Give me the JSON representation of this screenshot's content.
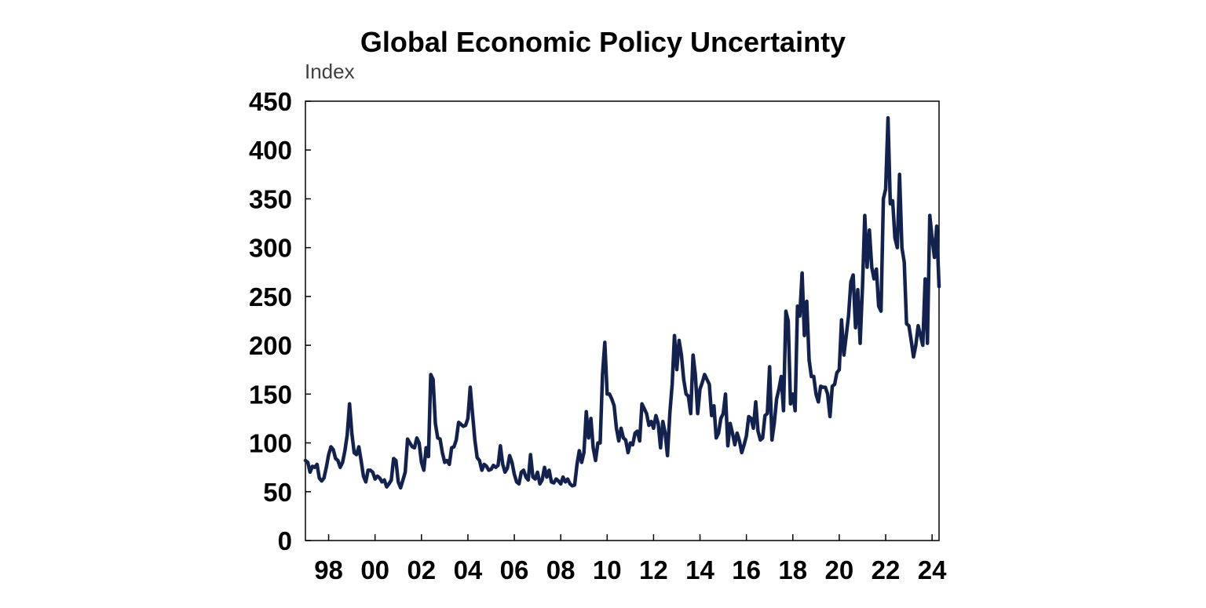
{
  "chart_data": {
    "type": "line",
    "title": "Global Economic Policy Uncertainty",
    "ylabel": "Index",
    "xlabel": "",
    "ylim": [
      0,
      450
    ],
    "xlim": [
      1997.0,
      2024.3
    ],
    "yticks": [
      0,
      50,
      100,
      150,
      200,
      250,
      300,
      350,
      400,
      450
    ],
    "xticks": [
      {
        "value": 1998,
        "label": "98"
      },
      {
        "value": 2000,
        "label": "00"
      },
      {
        "value": 2002,
        "label": "02"
      },
      {
        "value": 2004,
        "label": "04"
      },
      {
        "value": 2006,
        "label": "06"
      },
      {
        "value": 2008,
        "label": "08"
      },
      {
        "value": 2010,
        "label": "10"
      },
      {
        "value": 2012,
        "label": "12"
      },
      {
        "value": 2014,
        "label": "14"
      },
      {
        "value": 2016,
        "label": "16"
      },
      {
        "value": 2018,
        "label": "18"
      },
      {
        "value": 2020,
        "label": "20"
      },
      {
        "value": 2022,
        "label": "22"
      },
      {
        "value": 2024,
        "label": "24"
      }
    ],
    "grid": false,
    "legend": "none",
    "series": [
      {
        "name": "Global Economic Policy Uncertainty Index",
        "color": "#13214f",
        "points": [
          [
            1997.0,
            82
          ],
          [
            1997.1,
            80
          ],
          [
            1997.2,
            70
          ],
          [
            1997.3,
            76
          ],
          [
            1997.4,
            75
          ],
          [
            1997.5,
            78
          ],
          [
            1997.6,
            64
          ],
          [
            1997.7,
            61
          ],
          [
            1997.8,
            64
          ],
          [
            1997.9,
            75
          ],
          [
            1998.0,
            88
          ],
          [
            1998.1,
            96
          ],
          [
            1998.2,
            93
          ],
          [
            1998.3,
            84
          ],
          [
            1998.4,
            82
          ],
          [
            1998.5,
            75
          ],
          [
            1998.6,
            80
          ],
          [
            1998.7,
            92
          ],
          [
            1998.8,
            108
          ],
          [
            1998.9,
            140
          ],
          [
            1999.0,
            110
          ],
          [
            1999.1,
            90
          ],
          [
            1999.2,
            88
          ],
          [
            1999.3,
            96
          ],
          [
            1999.4,
            82
          ],
          [
            1999.5,
            66
          ],
          [
            1999.6,
            60
          ],
          [
            1999.7,
            72
          ],
          [
            1999.8,
            72
          ],
          [
            1999.9,
            70
          ],
          [
            2000.0,
            63
          ],
          [
            2000.1,
            66
          ],
          [
            2000.2,
            64
          ],
          [
            2000.3,
            60
          ],
          [
            2000.4,
            62
          ],
          [
            2000.5,
            55
          ],
          [
            2000.6,
            58
          ],
          [
            2000.7,
            62
          ],
          [
            2000.8,
            84
          ],
          [
            2000.9,
            82
          ],
          [
            2001.0,
            60
          ],
          [
            2001.1,
            54
          ],
          [
            2001.2,
            62
          ],
          [
            2001.3,
            70
          ],
          [
            2001.4,
            104
          ],
          [
            2001.5,
            100
          ],
          [
            2001.6,
            96
          ],
          [
            2001.7,
            95
          ],
          [
            2001.8,
            105
          ],
          [
            2001.9,
            100
          ],
          [
            2002.0,
            80
          ],
          [
            2002.1,
            72
          ],
          [
            2002.2,
            95
          ],
          [
            2002.3,
            86
          ],
          [
            2002.4,
            170
          ],
          [
            2002.5,
            165
          ],
          [
            2002.6,
            120
          ],
          [
            2002.7,
            105
          ],
          [
            2002.8,
            104
          ],
          [
            2002.9,
            90
          ],
          [
            2003.0,
            80
          ],
          [
            2003.1,
            82
          ],
          [
            2003.2,
            78
          ],
          [
            2003.3,
            95
          ],
          [
            2003.4,
            96
          ],
          [
            2003.5,
            103
          ],
          [
            2003.6,
            121
          ],
          [
            2003.7,
            119
          ],
          [
            2003.8,
            117
          ],
          [
            2003.9,
            118
          ],
          [
            2004.0,
            125
          ],
          [
            2004.1,
            157
          ],
          [
            2004.2,
            130
          ],
          [
            2004.3,
            103
          ],
          [
            2004.4,
            85
          ],
          [
            2004.5,
            82
          ],
          [
            2004.6,
            72
          ],
          [
            2004.7,
            78
          ],
          [
            2004.8,
            76
          ],
          [
            2004.9,
            72
          ],
          [
            2005.0,
            73
          ],
          [
            2005.1,
            77
          ],
          [
            2005.2,
            75
          ],
          [
            2005.3,
            77
          ],
          [
            2005.4,
            97
          ],
          [
            2005.5,
            78
          ],
          [
            2005.6,
            70
          ],
          [
            2005.7,
            74
          ],
          [
            2005.8,
            87
          ],
          [
            2005.9,
            80
          ],
          [
            2006.0,
            68
          ],
          [
            2006.1,
            60
          ],
          [
            2006.2,
            58
          ],
          [
            2006.3,
            70
          ],
          [
            2006.4,
            72
          ],
          [
            2006.5,
            65
          ],
          [
            2006.6,
            62
          ],
          [
            2006.7,
            88
          ],
          [
            2006.8,
            65
          ],
          [
            2006.9,
            63
          ],
          [
            2007.0,
            70
          ],
          [
            2007.1,
            58
          ],
          [
            2007.2,
            62
          ],
          [
            2007.3,
            75
          ],
          [
            2007.4,
            65
          ],
          [
            2007.5,
            72
          ],
          [
            2007.6,
            60
          ],
          [
            2007.7,
            59
          ],
          [
            2007.8,
            63
          ],
          [
            2007.9,
            61
          ],
          [
            2008.0,
            58
          ],
          [
            2008.1,
            65
          ],
          [
            2008.2,
            60
          ],
          [
            2008.3,
            63
          ],
          [
            2008.4,
            58
          ],
          [
            2008.5,
            56
          ],
          [
            2008.6,
            57
          ],
          [
            2008.7,
            78
          ],
          [
            2008.8,
            92
          ],
          [
            2008.9,
            80
          ],
          [
            2009.0,
            90
          ],
          [
            2009.1,
            132
          ],
          [
            2009.2,
            105
          ],
          [
            2009.3,
            125
          ],
          [
            2009.4,
            95
          ],
          [
            2009.5,
            82
          ],
          [
            2009.6,
            100
          ],
          [
            2009.7,
            100
          ],
          [
            2009.8,
            170
          ],
          [
            2009.9,
            203
          ],
          [
            2010.0,
            150
          ],
          [
            2010.1,
            150
          ],
          [
            2010.2,
            145
          ],
          [
            2010.3,
            138
          ],
          [
            2010.4,
            115
          ],
          [
            2010.5,
            102
          ],
          [
            2010.6,
            115
          ],
          [
            2010.7,
            105
          ],
          [
            2010.8,
            103
          ],
          [
            2010.9,
            90
          ],
          [
            2011.0,
            100
          ],
          [
            2011.1,
            98
          ],
          [
            2011.2,
            110
          ],
          [
            2011.3,
            112
          ],
          [
            2011.4,
            102
          ],
          [
            2011.5,
            140
          ],
          [
            2011.6,
            135
          ],
          [
            2011.7,
            130
          ],
          [
            2011.8,
            118
          ],
          [
            2011.9,
            122
          ],
          [
            2012.0,
            115
          ],
          [
            2012.1,
            128
          ],
          [
            2012.2,
            120
          ],
          [
            2012.3,
            95
          ],
          [
            2012.4,
            122
          ],
          [
            2012.5,
            110
          ],
          [
            2012.6,
            87
          ],
          [
            2012.7,
            130
          ],
          [
            2012.8,
            160
          ],
          [
            2012.9,
            210
          ],
          [
            2013.0,
            175
          ],
          [
            2013.1,
            205
          ],
          [
            2013.2,
            190
          ],
          [
            2013.3,
            165
          ],
          [
            2013.4,
            150
          ],
          [
            2013.5,
            148
          ],
          [
            2013.6,
            130
          ],
          [
            2013.7,
            190
          ],
          [
            2013.8,
            170
          ],
          [
            2013.9,
            130
          ],
          [
            2014.0,
            155
          ],
          [
            2014.1,
            162
          ],
          [
            2014.2,
            170
          ],
          [
            2014.3,
            165
          ],
          [
            2014.4,
            160
          ],
          [
            2014.5,
            128
          ],
          [
            2014.6,
            138
          ],
          [
            2014.7,
            105
          ],
          [
            2014.8,
            110
          ],
          [
            2014.9,
            125
          ],
          [
            2015.0,
            130
          ],
          [
            2015.1,
            150
          ],
          [
            2015.2,
            97
          ],
          [
            2015.3,
            120
          ],
          [
            2015.4,
            110
          ],
          [
            2015.5,
            98
          ],
          [
            2015.6,
            110
          ],
          [
            2015.7,
            102
          ],
          [
            2015.8,
            90
          ],
          [
            2015.9,
            98
          ],
          [
            2016.0,
            107
          ],
          [
            2016.1,
            127
          ],
          [
            2016.2,
            125
          ],
          [
            2016.3,
            115
          ],
          [
            2016.4,
            142
          ],
          [
            2016.5,
            112
          ],
          [
            2016.6,
            103
          ],
          [
            2016.7,
            105
          ],
          [
            2016.8,
            128
          ],
          [
            2016.9,
            130
          ],
          [
            2017.0,
            178
          ],
          [
            2017.1,
            103
          ],
          [
            2017.2,
            120
          ],
          [
            2017.3,
            145
          ],
          [
            2017.4,
            155
          ],
          [
            2017.5,
            168
          ],
          [
            2017.6,
            133
          ],
          [
            2017.7,
            235
          ],
          [
            2017.8,
            225
          ],
          [
            2017.9,
            140
          ],
          [
            2018.0,
            150
          ],
          [
            2018.1,
            133
          ],
          [
            2018.2,
            240
          ],
          [
            2018.3,
            230
          ],
          [
            2018.4,
            274
          ],
          [
            2018.5,
            210
          ],
          [
            2018.6,
            245
          ],
          [
            2018.7,
            185
          ],
          [
            2018.8,
            168
          ],
          [
            2018.9,
            168
          ],
          [
            2019.0,
            150
          ],
          [
            2019.1,
            142
          ],
          [
            2019.2,
            158
          ],
          [
            2019.3,
            157
          ],
          [
            2019.4,
            157
          ],
          [
            2019.5,
            150
          ],
          [
            2019.6,
            127
          ],
          [
            2019.7,
            158
          ],
          [
            2019.8,
            160
          ],
          [
            2019.9,
            172
          ],
          [
            2020.0,
            175
          ],
          [
            2020.1,
            226
          ],
          [
            2020.2,
            190
          ],
          [
            2020.3,
            210
          ],
          [
            2020.4,
            230
          ],
          [
            2020.5,
            265
          ],
          [
            2020.6,
            272
          ],
          [
            2020.7,
            218
          ],
          [
            2020.8,
            257
          ],
          [
            2020.9,
            202
          ],
          [
            2021.0,
            260
          ],
          [
            2021.1,
            333
          ],
          [
            2021.2,
            280
          ],
          [
            2021.3,
            318
          ],
          [
            2021.4,
            280
          ],
          [
            2021.5,
            268
          ],
          [
            2021.6,
            278
          ],
          [
            2021.7,
            240
          ],
          [
            2021.8,
            235
          ],
          [
            2021.9,
            350
          ],
          [
            2022.0,
            360
          ],
          [
            2022.1,
            433
          ],
          [
            2022.2,
            345
          ],
          [
            2022.3,
            348
          ],
          [
            2022.4,
            310
          ],
          [
            2022.5,
            300
          ],
          [
            2022.6,
            375
          ],
          [
            2022.7,
            300
          ],
          [
            2022.8,
            285
          ],
          [
            2022.9,
            222
          ],
          [
            2023.0,
            220
          ],
          [
            2023.1,
            205
          ],
          [
            2023.2,
            188
          ],
          [
            2023.3,
            200
          ],
          [
            2023.4,
            220
          ],
          [
            2023.5,
            210
          ],
          [
            2023.6,
            200
          ],
          [
            2023.7,
            268
          ],
          [
            2023.8,
            202
          ],
          [
            2023.9,
            333
          ],
          [
            2024.0,
            310
          ],
          [
            2024.1,
            290
          ],
          [
            2024.2,
            322
          ],
          [
            2024.3,
            260
          ]
        ]
      }
    ]
  }
}
